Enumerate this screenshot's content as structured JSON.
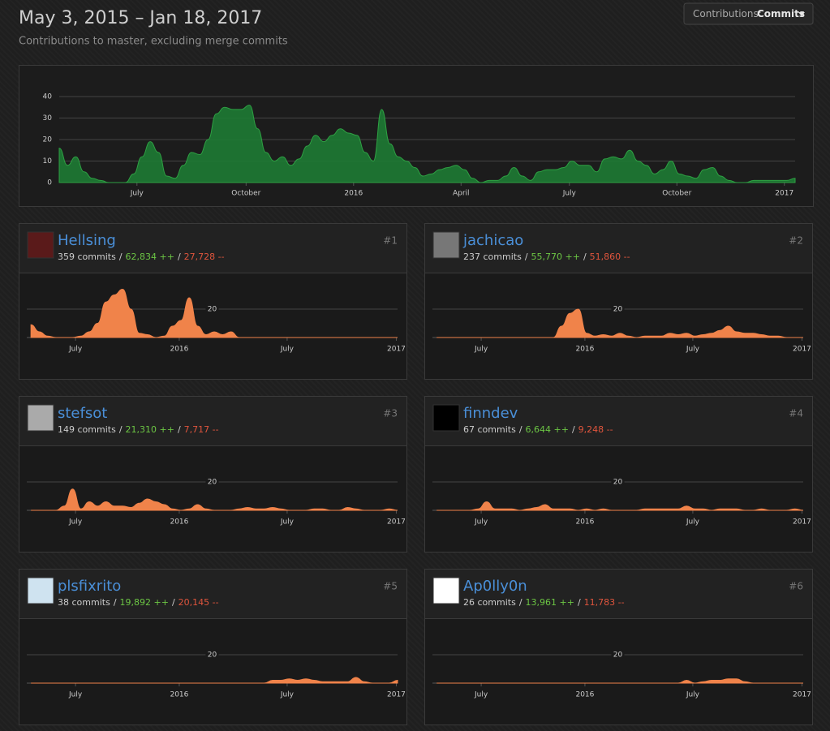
{
  "header": {
    "title": "May 3, 2015 – Jan 18, 2017",
    "subtitle": "Contributions to master, excluding merge commits"
  },
  "dropdown": {
    "label": "Contributions:",
    "value": "Commits"
  },
  "separator": "/",
  "chart_data": [
    {
      "type": "area",
      "color": "#1e7b34",
      "x": [
        0,
        1,
        2,
        3,
        4,
        5,
        6,
        7,
        8,
        9,
        10,
        11,
        12,
        13,
        14,
        15,
        16,
        17,
        18,
        19,
        20,
        21,
        22,
        23,
        24,
        25,
        26,
        27,
        28,
        29,
        30,
        31,
        32,
        33,
        34,
        35,
        36,
        37,
        38,
        39,
        40,
        41,
        42,
        43,
        44,
        45,
        46,
        47,
        48,
        49,
        50,
        51,
        52,
        53,
        54,
        55,
        56,
        57,
        58,
        59,
        60,
        61,
        62,
        63,
        64,
        65,
        66,
        67,
        68,
        69,
        70,
        71,
        72,
        73,
        74,
        75,
        76,
        77,
        78,
        79,
        80,
        81,
        82,
        83,
        84,
        85,
        86,
        87,
        88,
        89
      ],
      "values": [
        16,
        8,
        12,
        5,
        2,
        1,
        0,
        0,
        0,
        4,
        12,
        19,
        14,
        3,
        2,
        8,
        14,
        13,
        20,
        32,
        35,
        34,
        34,
        36,
        25,
        14,
        10,
        12,
        8,
        11,
        17,
        22,
        19,
        22,
        25,
        23,
        22,
        14,
        10,
        34,
        18,
        12,
        10,
        7,
        3,
        4,
        6,
        7,
        8,
        6,
        2,
        0,
        1,
        1,
        3,
        7,
        3,
        1,
        5,
        6,
        6,
        7,
        10,
        8,
        8,
        5,
        11,
        12,
        11,
        15,
        10,
        8,
        4,
        6,
        10,
        4,
        3,
        2,
        6,
        7,
        3,
        1,
        0,
        0,
        1,
        1,
        1,
        1,
        1,
        2
      ],
      "xlim": [
        0,
        89
      ],
      "ylim": [
        0,
        40
      ],
      "yticks": [
        0,
        10,
        20,
        30,
        40
      ],
      "grid": true,
      "xticks": [
        {
          "value": 9.4,
          "label": "July"
        },
        {
          "value": 22.6,
          "label": "October"
        },
        {
          "value": 35.6,
          "label": "2016"
        },
        {
          "value": 48.6,
          "label": "April"
        },
        {
          "value": 61.7,
          "label": "July"
        },
        {
          "value": 74.7,
          "label": "October"
        },
        {
          "value": 87.7,
          "label": "2017"
        }
      ]
    },
    {
      "type": "area",
      "name": "Hellsing",
      "rank": "#1",
      "commits": "359 commits",
      "additions": "62,834 ++",
      "deletions": "27,728 --",
      "color": "#f0834a",
      "x": [
        0,
        2,
        4,
        6,
        8,
        10,
        12,
        14,
        16,
        18,
        20,
        22,
        24,
        26,
        28,
        30,
        32,
        34,
        36,
        38,
        40,
        42,
        44,
        46,
        48,
        50,
        52,
        54,
        56,
        58,
        60,
        62,
        64,
        66,
        68,
        70,
        72,
        74,
        76,
        78,
        80,
        82,
        84,
        86,
        88
      ],
      "values": [
        9,
        4,
        1,
        0,
        0,
        0,
        1,
        4,
        10,
        25,
        30,
        34,
        20,
        3,
        2,
        0,
        1,
        8,
        12,
        28,
        8,
        2,
        4,
        2,
        4,
        0,
        0,
        0,
        0,
        0,
        0,
        0,
        0,
        0,
        0,
        0,
        0,
        0,
        0,
        0,
        0,
        0,
        0,
        0,
        0
      ],
      "xlim": [
        -1,
        88
      ],
      "ylim": [
        0,
        40
      ],
      "yticks": [
        20
      ],
      "grid": true,
      "xticks": [
        {
          "value": 10.7,
          "label": "July"
        },
        {
          "value": 35.6,
          "label": "2016"
        },
        {
          "value": 61.5,
          "label": "July"
        },
        {
          "value": 87.7,
          "label": "2017"
        }
      ]
    },
    {
      "type": "area",
      "name": "jachicao",
      "rank": "#2",
      "commits": "237 commits",
      "additions": "55,770 ++",
      "deletions": "51,860 --",
      "color": "#f0834a",
      "x": [
        0,
        2,
        4,
        6,
        8,
        10,
        12,
        14,
        16,
        18,
        20,
        22,
        24,
        26,
        28,
        30,
        32,
        34,
        36,
        38,
        40,
        42,
        44,
        46,
        48,
        50,
        52,
        54,
        56,
        58,
        60,
        62,
        64,
        66,
        68,
        70,
        72,
        74,
        76,
        78,
        80,
        82,
        84,
        86,
        88
      ],
      "values": [
        0,
        0,
        0,
        0,
        0,
        0,
        0,
        0,
        0,
        0,
        0,
        0,
        0,
        0,
        0,
        8,
        17,
        20,
        3,
        1,
        2,
        1,
        3,
        1,
        0,
        1,
        1,
        1,
        3,
        2,
        3,
        1,
        2,
        3,
        5,
        8,
        4,
        3,
        3,
        2,
        1,
        1,
        0,
        0,
        0
      ],
      "xlim": [
        -1,
        88
      ],
      "ylim": [
        0,
        40
      ],
      "yticks": [
        20
      ],
      "grid": true,
      "xticks": [
        {
          "value": 10.7,
          "label": "July"
        },
        {
          "value": 35.6,
          "label": "2016"
        },
        {
          "value": 61.5,
          "label": "July"
        },
        {
          "value": 87.7,
          "label": "2017"
        }
      ]
    },
    {
      "type": "area",
      "name": "stefsot",
      "rank": "#3",
      "commits": "149 commits",
      "additions": "21,310 ++",
      "deletions": "7,717 --",
      "color": "#f0834a",
      "x": [
        0,
        2,
        4,
        6,
        8,
        10,
        12,
        14,
        16,
        18,
        20,
        22,
        24,
        26,
        28,
        30,
        32,
        34,
        36,
        38,
        40,
        42,
        44,
        46,
        48,
        50,
        52,
        54,
        56,
        58,
        60,
        62,
        64,
        66,
        68,
        70,
        72,
        74,
        76,
        78,
        80,
        82,
        84,
        86,
        88
      ],
      "values": [
        0,
        0,
        0,
        0,
        3,
        15,
        1,
        6,
        3,
        6,
        3,
        3,
        2,
        5,
        8,
        6,
        4,
        1,
        0,
        1,
        4,
        1,
        0,
        0,
        0,
        1,
        2,
        1,
        1,
        2,
        1,
        0,
        0,
        0,
        1,
        1,
        0,
        0,
        2,
        1,
        0,
        0,
        0,
        1,
        0
      ],
      "xlim": [
        -1,
        88
      ],
      "ylim": [
        0,
        40
      ],
      "yticks": [
        20
      ],
      "grid": true,
      "xticks": [
        {
          "value": 10.7,
          "label": "July"
        },
        {
          "value": 35.6,
          "label": "2016"
        },
        {
          "value": 61.5,
          "label": "July"
        },
        {
          "value": 87.7,
          "label": "2017"
        }
      ]
    },
    {
      "type": "area",
      "name": "finndev",
      "rank": "#4",
      "commits": "67 commits",
      "additions": "6,644 ++",
      "deletions": "9,248 --",
      "color": "#f0834a",
      "x": [
        0,
        2,
        4,
        6,
        8,
        10,
        12,
        14,
        16,
        18,
        20,
        22,
        24,
        26,
        28,
        30,
        32,
        34,
        36,
        38,
        40,
        42,
        44,
        46,
        48,
        50,
        52,
        54,
        56,
        58,
        60,
        62,
        64,
        66,
        68,
        70,
        72,
        74,
        76,
        78,
        80,
        82,
        84,
        86,
        88
      ],
      "values": [
        0,
        0,
        0,
        0,
        0,
        1,
        6,
        1,
        1,
        1,
        0,
        1,
        2,
        4,
        1,
        1,
        1,
        0,
        1,
        0,
        1,
        0,
        0,
        0,
        0,
        1,
        1,
        1,
        1,
        1,
        3,
        1,
        1,
        0,
        1,
        1,
        1,
        0,
        0,
        1,
        0,
        0,
        0,
        1,
        0
      ],
      "xlim": [
        -1,
        88
      ],
      "ylim": [
        0,
        40
      ],
      "yticks": [
        20
      ],
      "grid": true,
      "xticks": [
        {
          "value": 10.7,
          "label": "July"
        },
        {
          "value": 35.6,
          "label": "2016"
        },
        {
          "value": 61.5,
          "label": "July"
        },
        {
          "value": 87.7,
          "label": "2017"
        }
      ]
    },
    {
      "type": "area",
      "name": "plsfixrito",
      "rank": "#5",
      "commits": "38 commits",
      "additions": "19,892 ++",
      "deletions": "20,145 --",
      "color": "#f0834a",
      "x": [
        0,
        2,
        4,
        6,
        8,
        10,
        12,
        14,
        16,
        18,
        20,
        22,
        24,
        26,
        28,
        30,
        32,
        34,
        36,
        38,
        40,
        42,
        44,
        46,
        48,
        50,
        52,
        54,
        56,
        58,
        60,
        62,
        64,
        66,
        68,
        70,
        72,
        74,
        76,
        78,
        80,
        82,
        84,
        86,
        88
      ],
      "values": [
        0,
        0,
        0,
        0,
        0,
        0,
        0,
        0,
        0,
        0,
        0,
        0,
        0,
        0,
        0,
        0,
        0,
        0,
        0,
        0,
        0,
        0,
        0,
        0,
        0,
        0,
        0,
        0,
        0,
        2,
        2,
        3,
        2,
        3,
        2,
        1,
        1,
        1,
        1,
        4,
        1,
        0,
        0,
        0,
        2
      ],
      "xlim": [
        -1,
        88
      ],
      "ylim": [
        0,
        40
      ],
      "yticks": [
        20
      ],
      "grid": true,
      "xticks": [
        {
          "value": 10.7,
          "label": "July"
        },
        {
          "value": 35.6,
          "label": "2016"
        },
        {
          "value": 61.5,
          "label": "July"
        },
        {
          "value": 87.7,
          "label": "2017"
        }
      ]
    },
    {
      "type": "area",
      "name": "Ap0lly0n",
      "rank": "#6",
      "commits": "26 commits",
      "additions": "13,961 ++",
      "deletions": "11,783 --",
      "color": "#f0834a",
      "x": [
        0,
        2,
        4,
        6,
        8,
        10,
        12,
        14,
        16,
        18,
        20,
        22,
        24,
        26,
        28,
        30,
        32,
        34,
        36,
        38,
        40,
        42,
        44,
        46,
        48,
        50,
        52,
        54,
        56,
        58,
        60,
        62,
        64,
        66,
        68,
        70,
        72,
        74,
        76,
        78,
        80,
        82,
        84,
        86,
        88
      ],
      "values": [
        0,
        0,
        0,
        0,
        0,
        0,
        0,
        0,
        0,
        0,
        0,
        0,
        0,
        0,
        0,
        0,
        0,
        0,
        0,
        0,
        0,
        0,
        0,
        0,
        0,
        0,
        0,
        0,
        0,
        0,
        2,
        0,
        1,
        2,
        2,
        3,
        3,
        1,
        0,
        0,
        0,
        0,
        0,
        0,
        0
      ],
      "xlim": [
        -1,
        88
      ],
      "ylim": [
        0,
        40
      ],
      "yticks": [
        20
      ],
      "grid": true,
      "xticks": [
        {
          "value": 10.7,
          "label": "July"
        },
        {
          "value": 35.6,
          "label": "2016"
        },
        {
          "value": 61.5,
          "label": "July"
        },
        {
          "value": 87.7,
          "label": "2017"
        }
      ]
    }
  ]
}
